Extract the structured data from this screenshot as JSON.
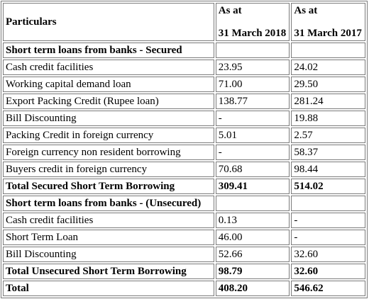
{
  "header": {
    "particulars": "Particulars",
    "col1_line1": "As at",
    "col1_line2": "31 March 2018",
    "col2_line1": "As at",
    "col2_line2": "31 March 2017"
  },
  "rows": [
    {
      "label": "Short term loans from banks - Secured",
      "v2018": "",
      "v2017": "",
      "bold": true
    },
    {
      "label": "Cash credit facilities",
      "v2018": "23.95",
      "v2017": "24.02",
      "bold": false
    },
    {
      "label": "Working capital demand loan",
      "v2018": "71.00",
      "v2017": "29.50",
      "bold": false
    },
    {
      "label": "Export Packing Credit (Rupee loan)",
      "v2018": "138.77",
      "v2017": "281.24",
      "bold": false
    },
    {
      "label": "Bill Discounting",
      "v2018": "-",
      "v2017": "19.88",
      "bold": false
    },
    {
      "label": "Packing Credit in foreign currency",
      "v2018": "5.01",
      "v2017": "2.57",
      "bold": false
    },
    {
      "label": "Foreign currency non resident borrowing",
      "v2018": "-",
      "v2017": "58.37",
      "bold": false
    },
    {
      "label": "Buyers credit in foreign currency",
      "v2018": "70.68",
      "v2017": "98.44",
      "bold": false
    },
    {
      "label": "Total Secured Short Term Borrowing",
      "v2018": "309.41",
      "v2017": "514.02",
      "bold": true
    },
    {
      "label": "Short term loans from banks - (Unsecured)",
      "v2018": "",
      "v2017": "",
      "bold": true
    },
    {
      "label": "Cash credit facilities",
      "v2018": "0.13",
      "v2017": "-",
      "bold": false
    },
    {
      "label": "Short Term Loan",
      "v2018": "46.00",
      "v2017": "-",
      "bold": false
    },
    {
      "label": "Bill Discounting",
      "v2018": "52.66",
      "v2017": "32.60",
      "bold": false
    },
    {
      "label": "Total Unsecured Short Term Borrowing",
      "v2018": "98.79",
      "v2017": "32.60",
      "bold": true
    },
    {
      "label": "Total",
      "v2018": "408.20",
      "v2017": "546.62",
      "bold": true
    }
  ]
}
